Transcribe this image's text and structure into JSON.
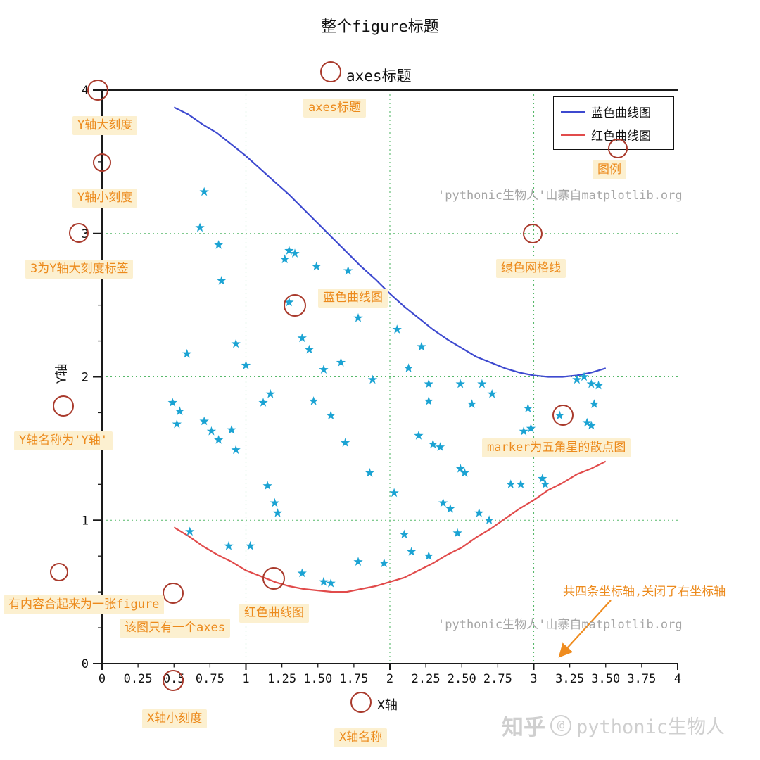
{
  "figure": {
    "title": "整个figure标题"
  },
  "axes": {
    "title": "axes标题",
    "xlabel": "X轴",
    "ylabel": "Y轴"
  },
  "watermark": {
    "text": "'pythonic生物人'山寨自matplotlib.org",
    "zhihu_brand": "知乎",
    "zhihu_at": "@",
    "zhihu_user": "pythonic生物人"
  },
  "annotation_style": {
    "circle_color": "#a93a2c",
    "label_color": "#ec8a1c",
    "label_bg": "#fcf0d0",
    "arrow_color": "#ef8c1f"
  },
  "annotations": [
    {
      "id": "y-major-tick",
      "label": "Y轴大刻度"
    },
    {
      "id": "y-minor-tick",
      "label": "Y轴小刻度"
    },
    {
      "id": "y-tick-label",
      "label": "3为Y轴大刻度标签"
    },
    {
      "id": "y-axis-name",
      "label": "Y轴名称为'Y轴'"
    },
    {
      "id": "figure-note",
      "label": "有内容合起来为一张figure"
    },
    {
      "id": "axes-note",
      "label": "该图只有一个axes"
    },
    {
      "id": "x-minor-tick",
      "label": "X轴小刻度"
    },
    {
      "id": "x-axis-name",
      "label": "X轴名称"
    },
    {
      "id": "red-curve",
      "label": "红色曲线图"
    },
    {
      "id": "blue-curve",
      "label": "蓝色曲线图"
    },
    {
      "id": "axes-title",
      "label": "axes标题"
    },
    {
      "id": "legend",
      "label": "图例"
    },
    {
      "id": "green-grid",
      "label": "绿色网格线"
    },
    {
      "id": "scatter-marker",
      "label": "marker为五角星的散点图"
    },
    {
      "id": "spines-note",
      "label": "共四条坐标轴,关闭了右坐标轴"
    }
  ],
  "chart_data": {
    "type": "line",
    "title": "axes标题",
    "figure_title": "整个figure标题",
    "xlabel": "X轴",
    "ylabel": "Y轴",
    "xlim": [
      0,
      4
    ],
    "ylim": [
      0,
      4
    ],
    "xticks": [
      0,
      0.25,
      0.5,
      0.75,
      1,
      1.25,
      1.5,
      1.75,
      2,
      2.25,
      2.5,
      2.75,
      3,
      3.25,
      3.5,
      3.75,
      4
    ],
    "xtick_labels": [
      "0",
      "0.25",
      "0.5",
      "0.75",
      "1",
      "1.25",
      "1.50",
      "1.75",
      "2",
      "2.25",
      "2.50",
      "2.75",
      "3",
      "3.25",
      "3.50",
      "3.75",
      "4"
    ],
    "yticks": [
      0,
      1,
      2,
      3,
      4
    ],
    "ytick_labels": [
      "0",
      "1",
      "2",
      "3",
      "4"
    ],
    "y_minor_step": 0.25,
    "grid": {
      "x": [
        1,
        2,
        3
      ],
      "y": [
        1,
        2,
        3
      ],
      "color": "#57b86a",
      "style": "dotted"
    },
    "spines": {
      "left": true,
      "bottom": true,
      "top": true,
      "right": false
    },
    "legend": {
      "position": "upper right",
      "items": [
        {
          "label": "蓝色曲线图",
          "color": "#3d49cf"
        },
        {
          "label": "红色曲线图",
          "color": "#e14b4b"
        }
      ]
    },
    "series": [
      {
        "id": "blue-curve-line",
        "name": "蓝色曲线图",
        "type": "line",
        "color": "#3d49cf",
        "points": [
          [
            0.5,
            3.88
          ],
          [
            0.6,
            3.83
          ],
          [
            0.7,
            3.76
          ],
          [
            0.8,
            3.7
          ],
          [
            0.9,
            3.62
          ],
          [
            1.0,
            3.54
          ],
          [
            1.1,
            3.45
          ],
          [
            1.2,
            3.36
          ],
          [
            1.3,
            3.27
          ],
          [
            1.4,
            3.17
          ],
          [
            1.5,
            3.07
          ],
          [
            1.6,
            2.97
          ],
          [
            1.7,
            2.87
          ],
          [
            1.8,
            2.77
          ],
          [
            1.9,
            2.68
          ],
          [
            2.0,
            2.58
          ],
          [
            2.1,
            2.49
          ],
          [
            2.2,
            2.41
          ],
          [
            2.3,
            2.33
          ],
          [
            2.4,
            2.26
          ],
          [
            2.5,
            2.2
          ],
          [
            2.6,
            2.14
          ],
          [
            2.7,
            2.1
          ],
          [
            2.8,
            2.06
          ],
          [
            2.9,
            2.03
          ],
          [
            3.0,
            2.01
          ],
          [
            3.1,
            2.0
          ],
          [
            3.2,
            2.0
          ],
          [
            3.3,
            2.01
          ],
          [
            3.4,
            2.03
          ],
          [
            3.5,
            2.06
          ]
        ]
      },
      {
        "id": "red-curve-line",
        "name": "红色曲线图",
        "type": "line",
        "color": "#e14b4b",
        "points": [
          [
            0.5,
            0.95
          ],
          [
            0.6,
            0.89
          ],
          [
            0.7,
            0.82
          ],
          [
            0.8,
            0.76
          ],
          [
            0.9,
            0.71
          ],
          [
            1.0,
            0.65
          ],
          [
            1.1,
            0.61
          ],
          [
            1.2,
            0.57
          ],
          [
            1.3,
            0.54
          ],
          [
            1.4,
            0.52
          ],
          [
            1.5,
            0.51
          ],
          [
            1.6,
            0.5
          ],
          [
            1.7,
            0.5
          ],
          [
            1.8,
            0.52
          ],
          [
            1.9,
            0.54
          ],
          [
            2.0,
            0.57
          ],
          [
            2.1,
            0.6
          ],
          [
            2.2,
            0.65
          ],
          [
            2.3,
            0.7
          ],
          [
            2.4,
            0.76
          ],
          [
            2.5,
            0.81
          ],
          [
            2.6,
            0.88
          ],
          [
            2.7,
            0.94
          ],
          [
            2.8,
            1.01
          ],
          [
            2.9,
            1.08
          ],
          [
            3.0,
            1.14
          ],
          [
            3.1,
            1.21
          ],
          [
            3.2,
            1.26
          ],
          [
            3.3,
            1.32
          ],
          [
            3.4,
            1.36
          ],
          [
            3.5,
            1.41
          ]
        ]
      },
      {
        "id": "scatter-stars",
        "name": "marker为五角星的散点图",
        "type": "scatter",
        "marker": "star",
        "color": "#1ba3d3",
        "points": [
          [
            0.71,
            3.29
          ],
          [
            0.68,
            3.04
          ],
          [
            0.81,
            2.92
          ],
          [
            0.83,
            2.67
          ],
          [
            1.27,
            2.82
          ],
          [
            1.34,
            2.86
          ],
          [
            1.3,
            2.88
          ],
          [
            1.49,
            2.77
          ],
          [
            1.71,
            2.74
          ],
          [
            1.3,
            2.52
          ],
          [
            1.78,
            2.41
          ],
          [
            2.05,
            2.33
          ],
          [
            1.39,
            2.27
          ],
          [
            1.44,
            2.19
          ],
          [
            0.93,
            2.23
          ],
          [
            0.59,
            2.16
          ],
          [
            1.0,
            2.08
          ],
          [
            1.54,
            2.05
          ],
          [
            1.66,
            2.1
          ],
          [
            2.22,
            2.21
          ],
          [
            2.13,
            2.06
          ],
          [
            1.88,
            1.98
          ],
          [
            2.27,
            1.95
          ],
          [
            0.49,
            1.82
          ],
          [
            0.54,
            1.76
          ],
          [
            0.52,
            1.67
          ],
          [
            0.71,
            1.69
          ],
          [
            0.76,
            1.62
          ],
          [
            0.9,
            1.63
          ],
          [
            0.81,
            1.56
          ],
          [
            0.93,
            1.49
          ],
          [
            1.12,
            1.82
          ],
          [
            1.17,
            1.88
          ],
          [
            1.47,
            1.83
          ],
          [
            1.59,
            1.73
          ],
          [
            1.69,
            1.54
          ],
          [
            1.86,
            1.33
          ],
          [
            2.03,
            1.19
          ],
          [
            2.1,
            0.9
          ],
          [
            2.15,
            0.78
          ],
          [
            2.27,
            0.75
          ],
          [
            1.96,
            0.7
          ],
          [
            1.78,
            0.71
          ],
          [
            1.54,
            0.57
          ],
          [
            1.59,
            0.56
          ],
          [
            1.39,
            0.63
          ],
          [
            1.03,
            0.82
          ],
          [
            0.88,
            0.82
          ],
          [
            0.61,
            0.92
          ],
          [
            1.2,
            1.12
          ],
          [
            1.22,
            1.05
          ],
          [
            1.15,
            1.24
          ],
          [
            2.2,
            1.59
          ],
          [
            2.35,
            1.51
          ],
          [
            2.57,
            1.81
          ],
          [
            2.64,
            1.95
          ],
          [
            2.71,
            1.88
          ],
          [
            2.84,
            1.25
          ],
          [
            2.91,
            1.25
          ],
          [
            2.49,
            1.36
          ],
          [
            2.52,
            1.33
          ],
          [
            2.37,
            1.12
          ],
          [
            2.42,
            1.08
          ],
          [
            2.62,
            1.05
          ],
          [
            2.69,
            1.0
          ],
          [
            2.47,
            0.91
          ],
          [
            2.96,
            1.78
          ],
          [
            2.98,
            1.64
          ],
          [
            2.93,
            1.62
          ],
          [
            3.06,
            1.29
          ],
          [
            3.08,
            1.25
          ],
          [
            3.18,
            1.73
          ],
          [
            3.3,
            1.98
          ],
          [
            3.35,
            2.0
          ],
          [
            3.4,
            1.95
          ],
          [
            3.45,
            1.94
          ],
          [
            3.42,
            1.81
          ],
          [
            3.37,
            1.68
          ],
          [
            3.4,
            1.66
          ],
          [
            2.27,
            1.83
          ],
          [
            2.3,
            1.53
          ],
          [
            2.49,
            1.95
          ]
        ]
      }
    ]
  }
}
